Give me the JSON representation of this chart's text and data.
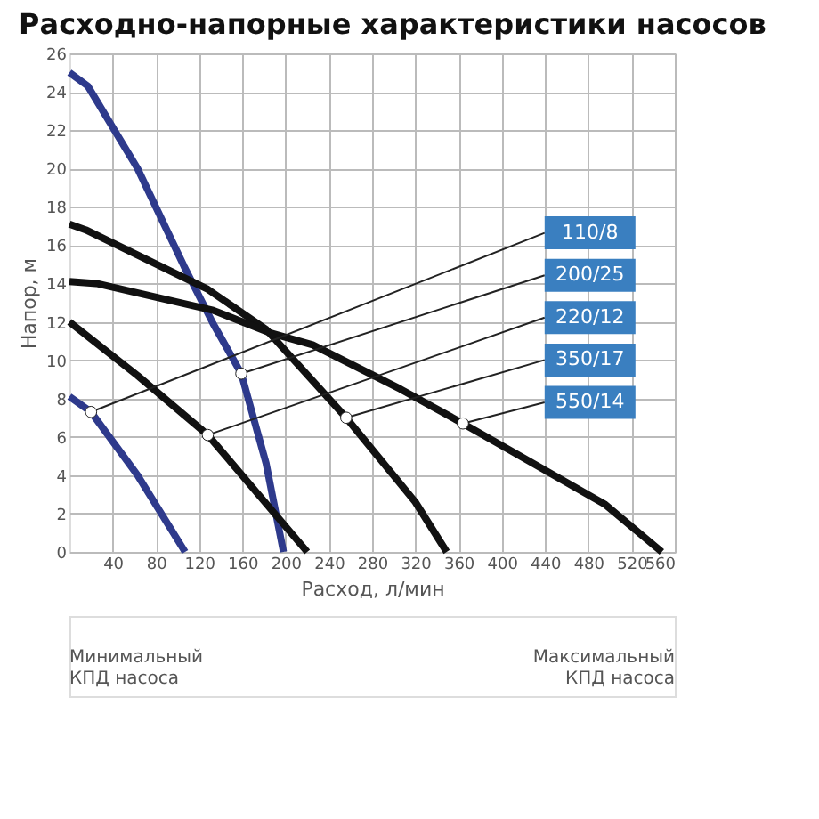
{
  "chart_data": {
    "type": "line",
    "title": "Расходно-напорные характеристики насосов",
    "xlabel": "Расход, л/мин",
    "ylabel": "Напор, м",
    "xlim": [
      0,
      560
    ],
    "ylim": [
      0,
      26
    ],
    "xticks": [
      40,
      80,
      120,
      160,
      200,
      240,
      280,
      320,
      360,
      400,
      440,
      480,
      520,
      560
    ],
    "yticks": [
      0,
      2,
      4,
      6,
      8,
      10,
      12,
      14,
      16,
      18,
      20,
      22,
      24,
      26
    ],
    "grid": true,
    "marker": "none",
    "line_style": "solid",
    "series": [
      {
        "color": "#2e3a8c",
        "x": [
          0,
          20,
          63,
          107
        ],
        "values": [
          8.1,
          7.3,
          4.0,
          0
        ]
      },
      {
        "color": "#2e3a8c",
        "x": [
          0,
          17,
          63,
          106,
          133,
          159,
          182,
          198
        ],
        "values": [
          25,
          24.3,
          20,
          14.9,
          11.9,
          9.3,
          4.6,
          0
        ]
      },
      {
        "color": "#111111",
        "x": [
          0,
          63,
          128,
          220
        ],
        "values": [
          12,
          9.2,
          6.1,
          0
        ]
      },
      {
        "color": "#111111",
        "x": [
          0,
          15,
          128,
          182,
          256,
          320,
          349
        ],
        "values": [
          17.1,
          16.8,
          13.7,
          11.6,
          7.0,
          2.6,
          0
        ]
      },
      {
        "color": "#111111",
        "x": [
          0,
          25,
          133,
          187,
          225,
          306,
          364,
          495,
          548
        ],
        "values": [
          14.1,
          14.0,
          12.6,
          11.4,
          10.8,
          8.5,
          6.7,
          2.5,
          0
        ]
      }
    ],
    "annotations": [
      {
        "text": "110/8",
        "x": 20,
        "y": 7.3
      },
      {
        "text": "200/25",
        "x": 159,
        "y": 9.3
      },
      {
        "text": "220/12",
        "x": 128,
        "y": 6.1
      },
      {
        "text": "350/17",
        "x": 256,
        "y": 7.0
      },
      {
        "text": "550/14",
        "x": 364,
        "y": 6.7
      },
      "Минимальный\nКПД насоса",
      "Максимальный\nКПД насоса"
    ]
  }
}
